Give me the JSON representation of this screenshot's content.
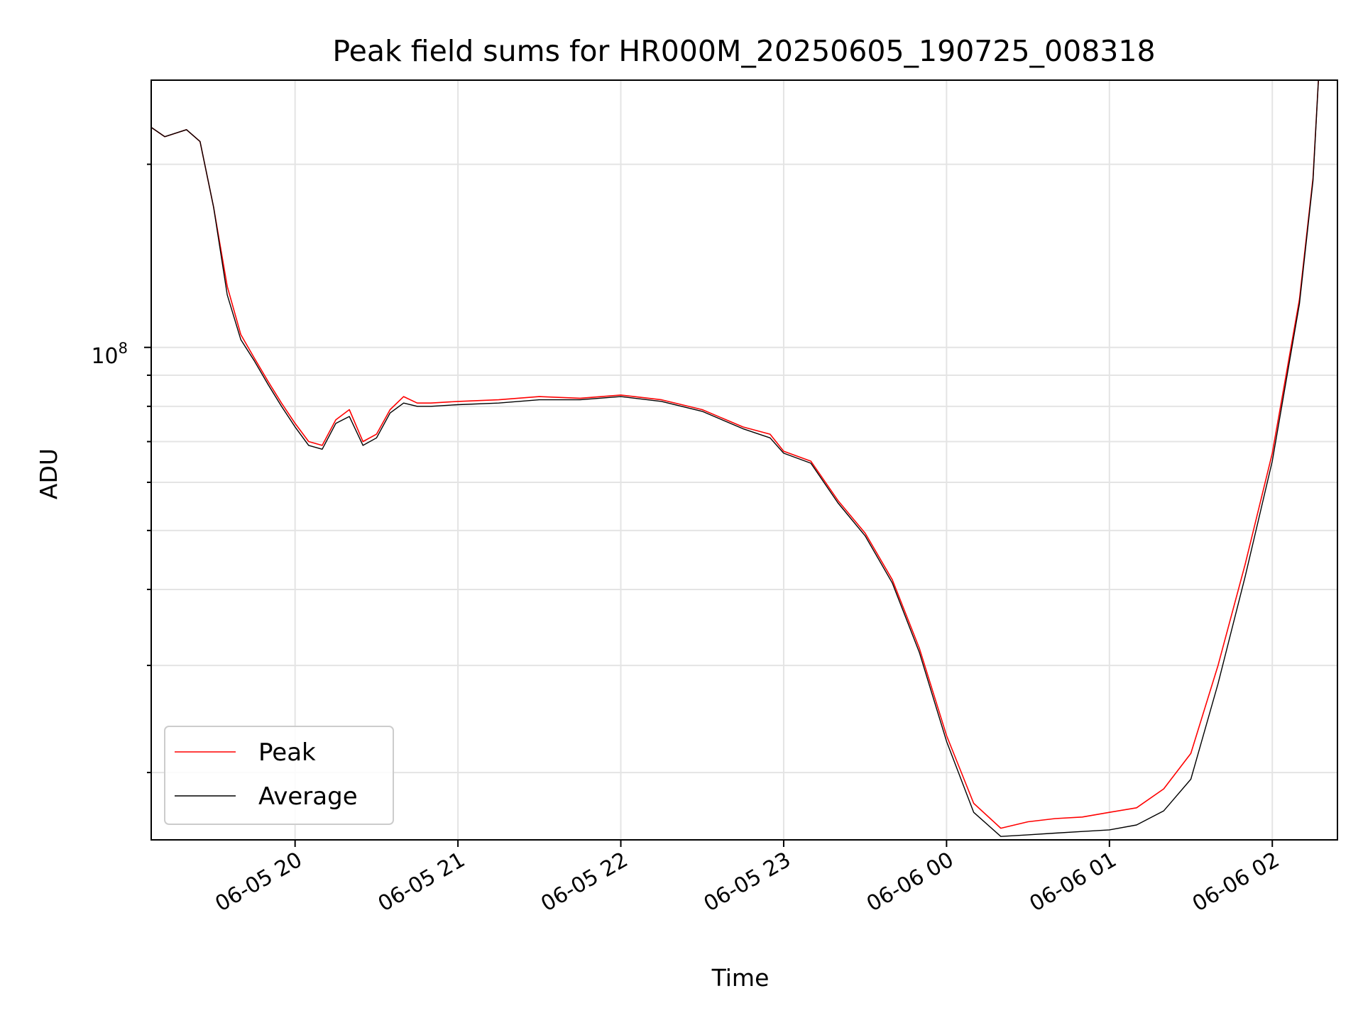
{
  "chart_data": {
    "type": "line",
    "title": "Peak field sums for HR000M_20250605_190725_008318",
    "xlabel": "Time",
    "ylabel": "ADU",
    "y_scale": "log",
    "x_unit": "hours (MM-DD HH)",
    "x_ticks": [
      {
        "value": "2025-06-05 20:00",
        "label": "06-05 20"
      },
      {
        "value": "2025-06-05 21:00",
        "label": "06-05 21"
      },
      {
        "value": "2025-06-05 22:00",
        "label": "06-05 22"
      },
      {
        "value": "2025-06-05 23:00",
        "label": "06-05 23"
      },
      {
        "value": "2025-06-06 00:00",
        "label": "06-06 00"
      },
      {
        "value": "2025-06-06 01:00",
        "label": "06-06 01"
      },
      {
        "value": "2025-06-06 02:00",
        "label": "06-06 02"
      }
    ],
    "y_tick_label": {
      "base": "10",
      "exponent": "8"
    },
    "xlim": [
      "2025-06-05 19:07",
      "2025-06-06 02:24"
    ],
    "ylim": [
      15500000,
      275000000
    ],
    "grid": true,
    "legend": {
      "placement": "lower-left"
    },
    "series": [
      {
        "name": "Peak",
        "color": "#ff0000",
        "x": [
          "2025-06-05 19:07",
          "2025-06-05 19:12",
          "2025-06-05 19:20",
          "2025-06-05 19:25",
          "2025-06-05 19:30",
          "2025-06-05 19:35",
          "2025-06-05 19:40",
          "2025-06-05 19:45",
          "2025-06-05 19:50",
          "2025-06-05 19:55",
          "2025-06-05 20:00",
          "2025-06-05 20:05",
          "2025-06-05 20:10",
          "2025-06-05 20:15",
          "2025-06-05 20:20",
          "2025-06-05 20:25",
          "2025-06-05 20:30",
          "2025-06-05 20:35",
          "2025-06-05 20:40",
          "2025-06-05 20:45",
          "2025-06-05 20:50",
          "2025-06-05 21:00",
          "2025-06-05 21:15",
          "2025-06-05 21:30",
          "2025-06-05 21:45",
          "2025-06-05 22:00",
          "2025-06-05 22:15",
          "2025-06-05 22:30",
          "2025-06-05 22:45",
          "2025-06-05 22:55",
          "2025-06-05 23:00",
          "2025-06-05 23:10",
          "2025-06-05 23:20",
          "2025-06-05 23:30",
          "2025-06-05 23:40",
          "2025-06-05 23:50",
          "2025-06-06 00:00",
          "2025-06-06 00:10",
          "2025-06-06 00:20",
          "2025-06-06 00:30",
          "2025-06-06 00:40",
          "2025-06-06 00:50",
          "2025-06-06 01:00",
          "2025-06-06 01:10",
          "2025-06-06 01:20",
          "2025-06-06 01:30",
          "2025-06-06 01:40",
          "2025-06-06 01:50",
          "2025-06-06 02:00",
          "2025-06-06 02:10",
          "2025-06-06 02:15",
          "2025-06-06 02:17"
        ],
        "values": [
          230000000,
          222000000,
          228000000,
          218000000,
          170000000,
          126000000,
          105000000,
          96000000,
          88000000,
          81000000,
          75000000,
          70000000,
          69000000,
          76000000,
          79000000,
          70000000,
          72000000,
          79000000,
          83000000,
          81000000,
          81000000,
          81500000,
          82000000,
          83000000,
          82500000,
          83500000,
          82000000,
          79000000,
          74000000,
          72000000,
          67500000,
          65000000,
          56000000,
          49500000,
          41500000,
          32000000,
          23000000,
          17800000,
          16200000,
          16600000,
          16800000,
          16900000,
          17200000,
          17500000,
          18800000,
          21500000,
          30000000,
          44000000,
          67000000,
          120000000,
          190000000,
          275000000
        ]
      },
      {
        "name": "Average",
        "color": "#000000",
        "x": [
          "2025-06-05 19:07",
          "2025-06-05 19:12",
          "2025-06-05 19:20",
          "2025-06-05 19:25",
          "2025-06-05 19:30",
          "2025-06-05 19:35",
          "2025-06-05 19:40",
          "2025-06-05 19:45",
          "2025-06-05 19:50",
          "2025-06-05 19:55",
          "2025-06-05 20:00",
          "2025-06-05 20:05",
          "2025-06-05 20:10",
          "2025-06-05 20:15",
          "2025-06-05 20:20",
          "2025-06-05 20:25",
          "2025-06-05 20:30",
          "2025-06-05 20:35",
          "2025-06-05 20:40",
          "2025-06-05 20:45",
          "2025-06-05 20:50",
          "2025-06-05 21:00",
          "2025-06-05 21:15",
          "2025-06-05 21:30",
          "2025-06-05 21:45",
          "2025-06-05 22:00",
          "2025-06-05 22:15",
          "2025-06-05 22:30",
          "2025-06-05 22:45",
          "2025-06-05 22:55",
          "2025-06-05 23:00",
          "2025-06-05 23:10",
          "2025-06-05 23:20",
          "2025-06-05 23:30",
          "2025-06-05 23:40",
          "2025-06-05 23:50",
          "2025-06-06 00:00",
          "2025-06-06 00:10",
          "2025-06-06 00:20",
          "2025-06-06 00:30",
          "2025-06-06 00:40",
          "2025-06-06 00:50",
          "2025-06-06 01:00",
          "2025-06-06 01:10",
          "2025-06-06 01:20",
          "2025-06-06 01:30",
          "2025-06-06 01:40",
          "2025-06-06 01:50",
          "2025-06-06 02:00",
          "2025-06-06 02:10",
          "2025-06-06 02:15",
          "2025-06-06 02:17"
        ],
        "values": [
          230000000,
          222000000,
          228000000,
          218000000,
          170000000,
          122000000,
          103000000,
          95000000,
          87000000,
          80000000,
          74000000,
          69000000,
          68000000,
          75000000,
          77000000,
          69000000,
          71000000,
          78000000,
          81000000,
          80000000,
          80000000,
          80500000,
          81000000,
          82000000,
          82000000,
          83000000,
          81500000,
          78500000,
          73500000,
          71000000,
          67000000,
          64500000,
          55500000,
          49000000,
          41000000,
          31500000,
          22500000,
          17200000,
          15700000,
          15800000,
          15900000,
          16000000,
          16100000,
          16400000,
          17300000,
          19500000,
          28000000,
          42000000,
          65000000,
          118000000,
          188000000,
          275000000
        ]
      }
    ]
  }
}
